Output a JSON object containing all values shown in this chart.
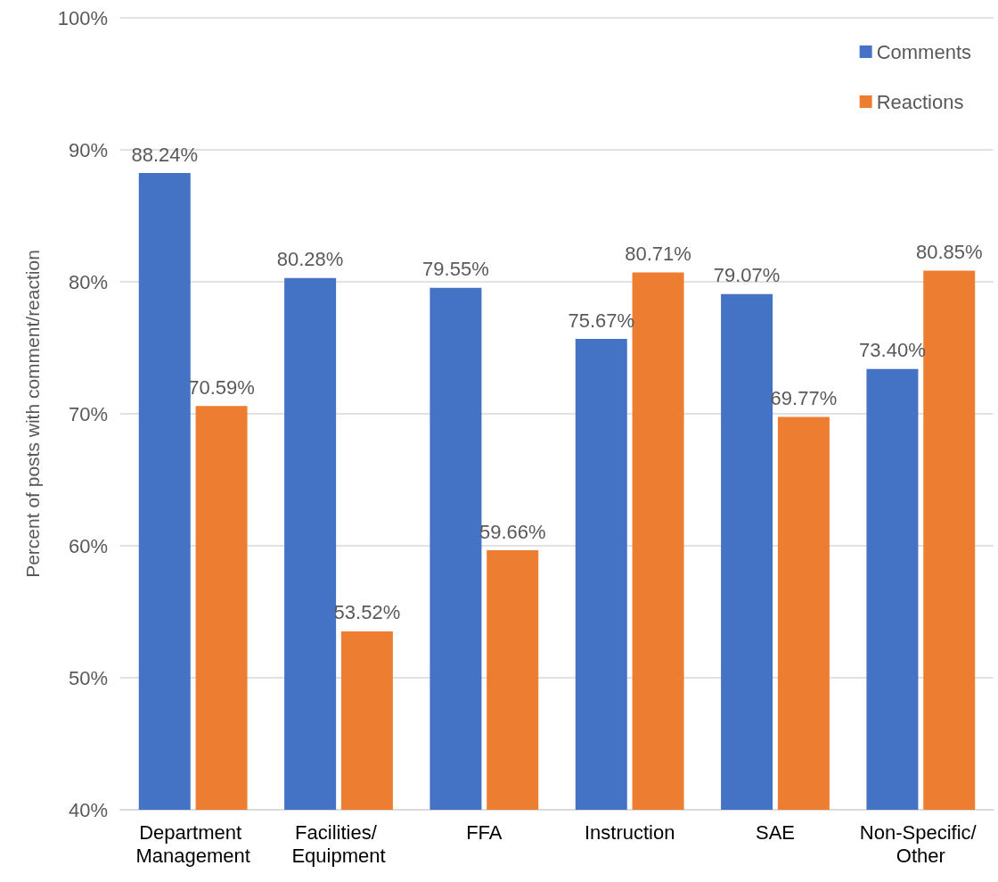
{
  "chart_data": {
    "type": "bar",
    "ylabel": "Percent of posts with comment/reaction",
    "categories": [
      "Department Management",
      "Facilities/ Equipment",
      "FFA",
      "Instruction",
      "SAE",
      "Non-Specific/ Other"
    ],
    "series": [
      {
        "name": "Comments",
        "color": "#4472c4",
        "values": [
          88.24,
          80.28,
          79.55,
          75.67,
          79.07,
          73.4
        ],
        "value_labels": [
          "88.24%",
          "80.28%",
          "79.55%",
          "75.67%",
          "79.07%",
          "73.40%"
        ]
      },
      {
        "name": "Reactions",
        "color": "#ed7d31",
        "values": [
          70.59,
          53.52,
          59.66,
          80.71,
          69.77,
          80.85
        ],
        "value_labels": [
          "70.59%",
          "53.52%",
          "59.66%",
          "80.71%",
          "69.77%",
          "80.85%"
        ]
      }
    ],
    "ylim": [
      40,
      100
    ],
    "yticks": [
      {
        "value": 40,
        "label": "40%"
      },
      {
        "value": 50,
        "label": "50%"
      },
      {
        "value": 60,
        "label": "60%"
      },
      {
        "value": 70,
        "label": "70%"
      },
      {
        "value": 80,
        "label": "80%"
      },
      {
        "value": 90,
        "label": "90%"
      },
      {
        "value": 100,
        "label": "100%"
      }
    ],
    "grid": "y",
    "legend": "top right"
  }
}
